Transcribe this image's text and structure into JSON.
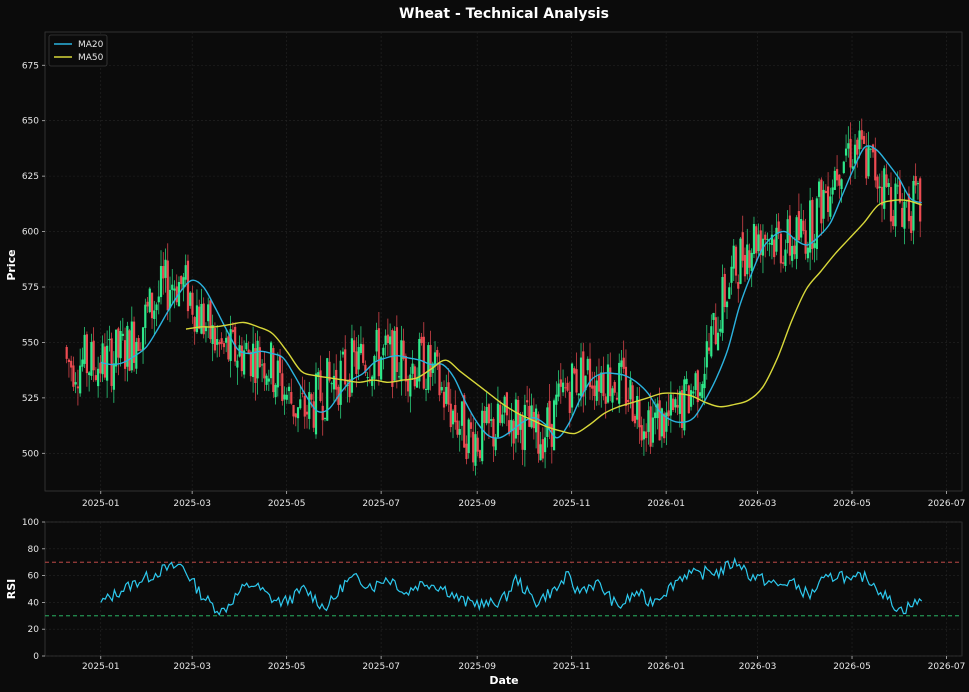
{
  "colors": {
    "background": "#0b0b0b",
    "panel": "#0b0b0b",
    "grid": "#262626",
    "spine": "#3a3a3a",
    "up": "#2ee88a",
    "down": "#ee4b52",
    "ma20": "#2bb3df",
    "ma50": "#d8d83a",
    "rsi": "#2dc9ee",
    "overbought": "#d9534f",
    "oversold": "#2ecc71"
  },
  "chart_data": [
    {
      "id": "price",
      "type": "candlestick",
      "title": "Wheat - Technical Analysis",
      "ylabel": "Price",
      "xlabel": "",
      "x_range": [
        "2024-11-26",
        "2026-07-11"
      ],
      "ylim": [
        483,
        690
      ],
      "yticks": [
        500,
        525,
        550,
        575,
        600,
        625,
        650,
        675
      ],
      "xticks": [
        "2025-01",
        "2025-03",
        "2025-05",
        "2025-07",
        "2025-09",
        "2025-11",
        "2026-01",
        "2026-03",
        "2026-05",
        "2026-07"
      ],
      "grid": true,
      "legend_position": "top-left",
      "series": [
        {
          "name": "MA20",
          "start": "2025-01-01",
          "end": "2026-06-15",
          "values": [
            541,
            540,
            541,
            544,
            548,
            556,
            565,
            573,
            578,
            575,
            566,
            556,
            547,
            545,
            546,
            545,
            543,
            535,
            526,
            519,
            520,
            527,
            533,
            536,
            541,
            543,
            544,
            543,
            542,
            540,
            540,
            534,
            523,
            514,
            508,
            507,
            510,
            514,
            516,
            513,
            507,
            513,
            524,
            533,
            536,
            536,
            535,
            532,
            527,
            519,
            515,
            514,
            516,
            524,
            534,
            547,
            566,
            580,
            592,
            598,
            600,
            596,
            594,
            598,
            604,
            616,
            628,
            638,
            637,
            631,
            624,
            615,
            613
          ]
        },
        {
          "name": "MA50",
          "start": "2025-02-25",
          "end": "2026-06-15",
          "values": [
            556,
            557,
            557,
            558,
            559,
            557,
            554,
            546,
            537,
            535,
            534,
            533,
            532,
            533,
            532,
            533,
            534,
            538,
            542,
            537,
            532,
            527,
            522,
            518,
            515,
            512,
            510,
            509,
            513,
            518,
            521,
            523,
            525,
            527,
            527,
            526,
            523,
            521,
            522,
            524,
            530,
            543,
            560,
            574,
            582,
            590,
            597,
            604,
            612,
            614,
            614,
            612
          ]
        }
      ]
    },
    {
      "id": "rsi",
      "type": "line",
      "ylabel": "RSI",
      "xlabel": "Date",
      "ylim": [
        0,
        100
      ],
      "yticks": [
        0,
        20,
        40,
        60,
        80,
        100
      ],
      "xticks": [
        "2025-01",
        "2025-03",
        "2025-05",
        "2025-07",
        "2025-09",
        "2025-11",
        "2026-01",
        "2026-03",
        "2026-05",
        "2026-07"
      ],
      "reference_lines": [
        70,
        30
      ],
      "grid": true,
      "series": [
        {
          "name": "RSI",
          "start": "2025-01-01",
          "end": "2026-06-15",
          "values": [
            40,
            44,
            49,
            53,
            57,
            60,
            64,
            66,
            68,
            56,
            45,
            38,
            33,
            42,
            50,
            54,
            48,
            42,
            40,
            44,
            50,
            44,
            36,
            42,
            54,
            58,
            55,
            52,
            58,
            56,
            46,
            52,
            55,
            53,
            50,
            44,
            40,
            40,
            38,
            40,
            44,
            58,
            48,
            40,
            46,
            50,
            60,
            48,
            52,
            54,
            46,
            36,
            42,
            48,
            40,
            44,
            50,
            58,
            62,
            60,
            64,
            62,
            68,
            70,
            60,
            58,
            55,
            52,
            56,
            50,
            45,
            55,
            58,
            62,
            54,
            60,
            56,
            48,
            40,
            34,
            38,
            41
          ]
        }
      ]
    }
  ]
}
